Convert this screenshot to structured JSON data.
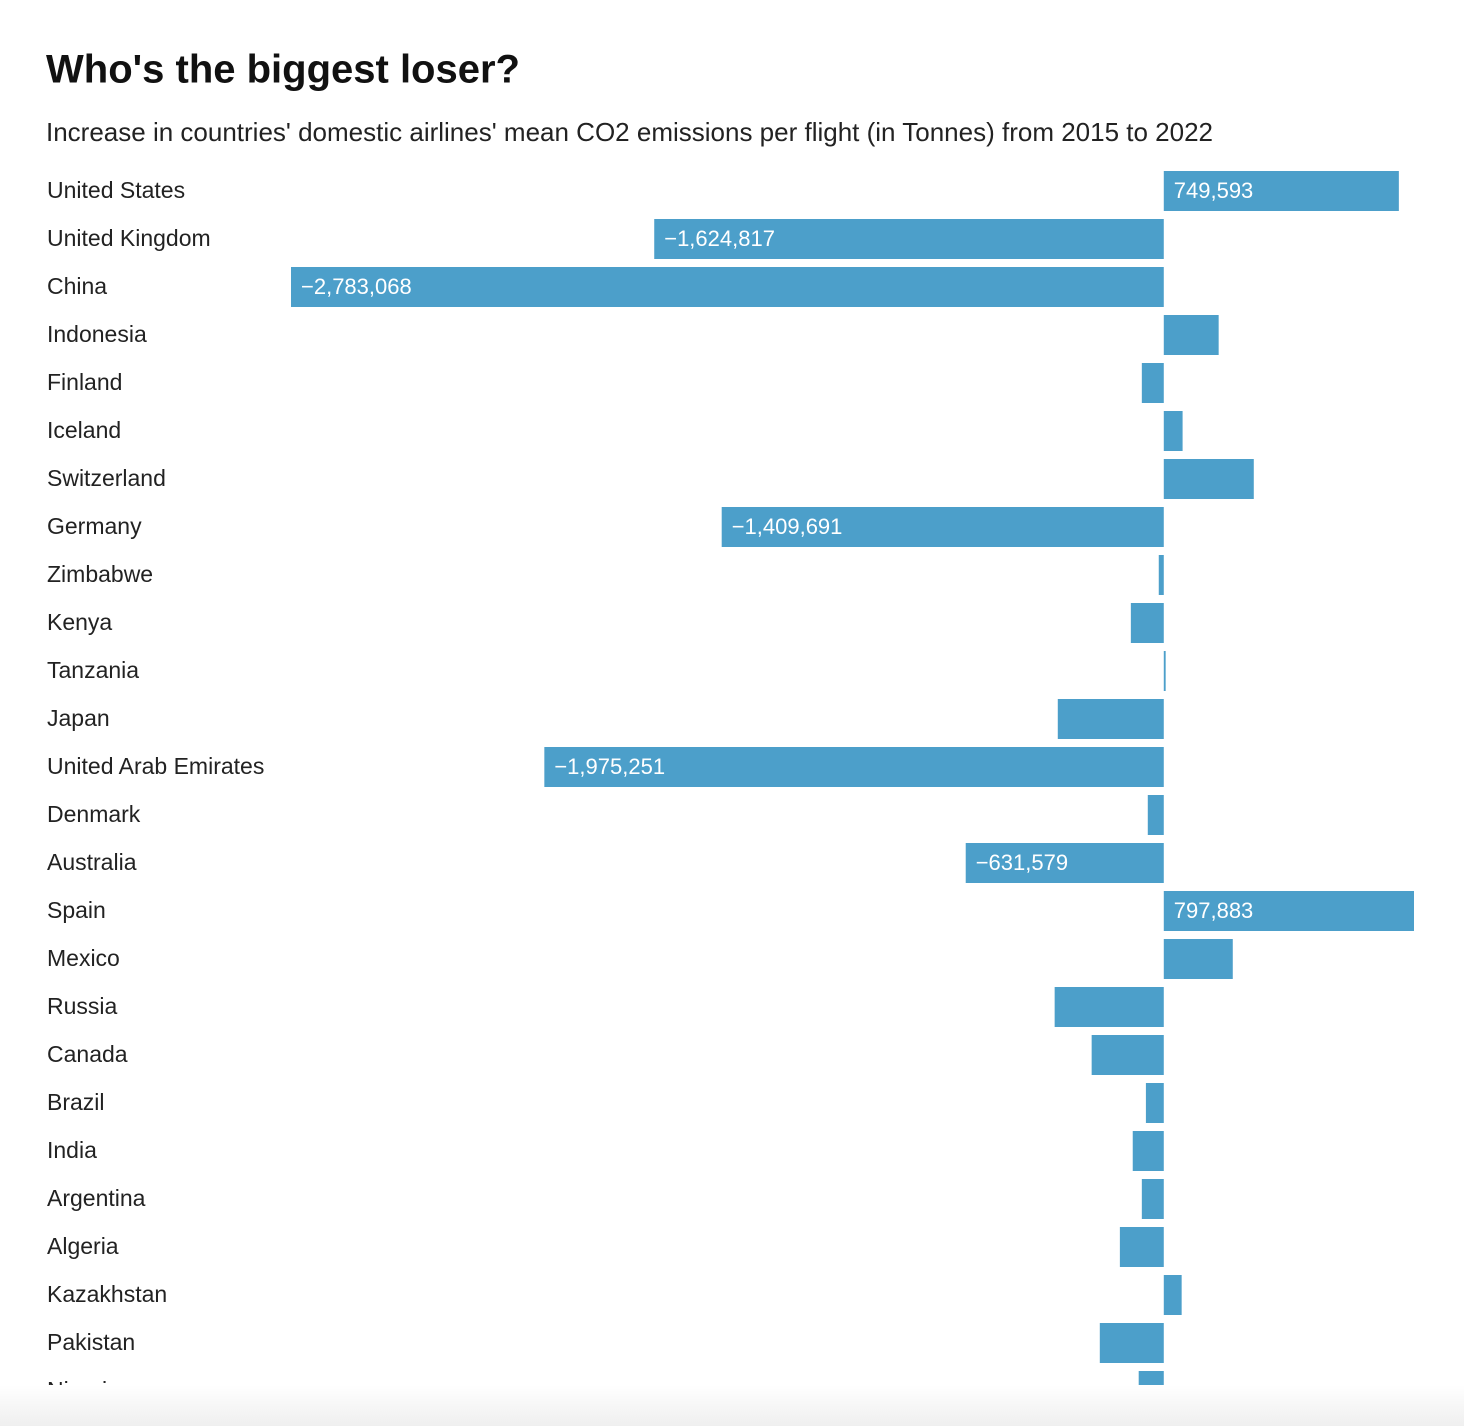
{
  "chart_data": {
    "type": "bar",
    "orientation": "horizontal",
    "title": "Who's the biggest loser?",
    "subtitle": "Increase in countries' domestic airlines' mean CO2 emissions per flight (in Tonnes) from 2015 to 2022",
    "color": "#4c9fca",
    "categories": [
      "United States",
      "United Kingdom",
      "China",
      "Indonesia",
      "Finland",
      "Iceland",
      "Switzerland",
      "Germany",
      "Zimbabwe",
      "Kenya",
      "Tanzania",
      "Japan",
      "United Arab Emirates",
      "Denmark",
      "Australia",
      "Spain",
      "Mexico",
      "Russia",
      "Canada",
      "Brazil",
      "India",
      "Argentina",
      "Algeria",
      "Kazakhstan",
      "Pakistan",
      "Nigeria"
    ],
    "values": [
      749593,
      -1624817,
      -2783068,
      175000,
      -70000,
      60000,
      287000,
      -1409691,
      -16000,
      -105000,
      6000,
      -338000,
      -1975251,
      -51000,
      -631579,
      797883,
      220000,
      -348000,
      -230000,
      -57000,
      -99000,
      -70000,
      -140000,
      57000,
      -204000,
      -80000
    ],
    "value_labels": [
      "749,593",
      "−1,624,817",
      "−2,783,068",
      null,
      null,
      null,
      null,
      "−1,409,691",
      null,
      null,
      null,
      null,
      "−1,975,251",
      null,
      "−631,579",
      "797,883",
      null,
      null,
      null,
      null,
      null,
      null,
      null,
      null,
      null,
      null
    ]
  }
}
